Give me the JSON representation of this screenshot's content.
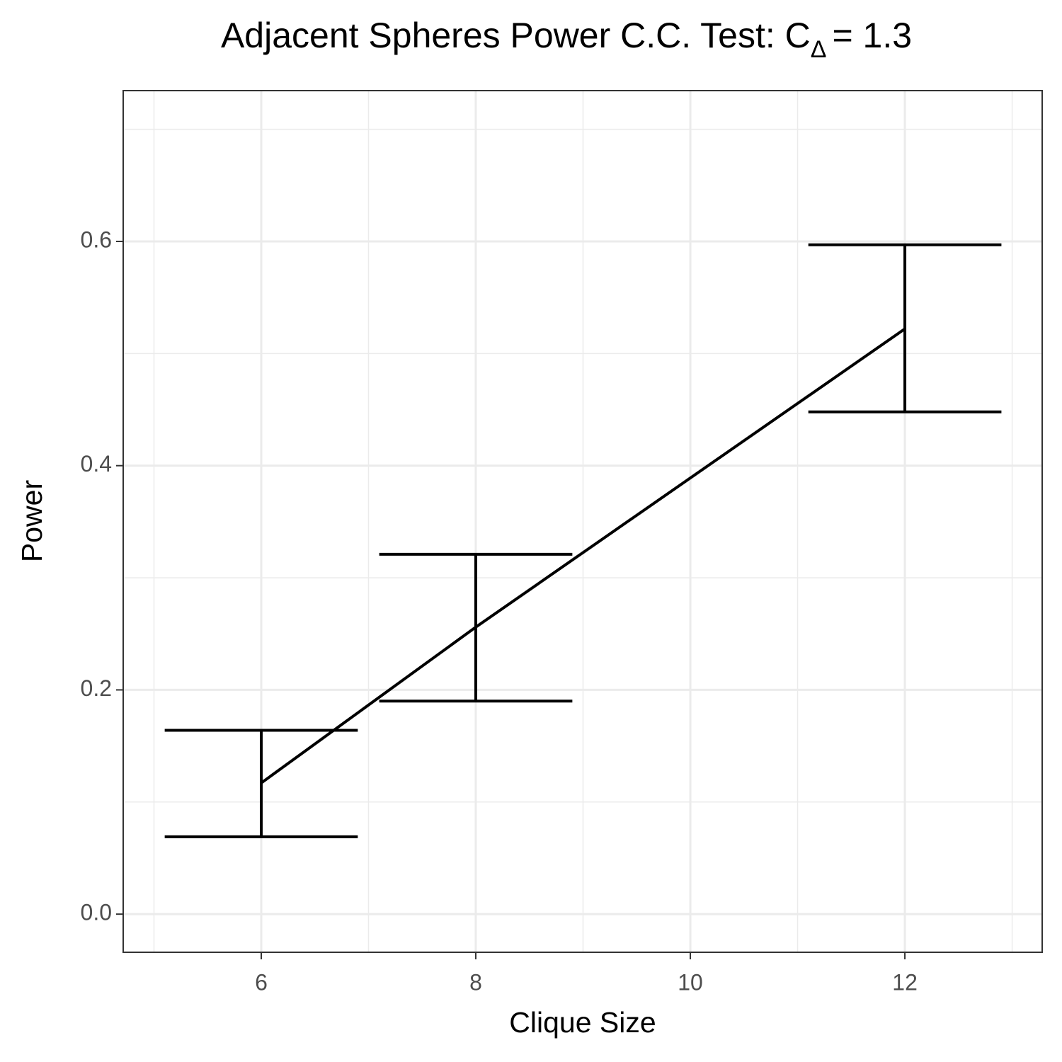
{
  "chart_data": {
    "type": "line-errorbar",
    "title": [
      "Adjacent Spheres Power C.C. Test: C",
      "Δ",
      "= 1.3"
    ],
    "x_label": "Clique Size",
    "y_label": "Power",
    "x": [
      6,
      8,
      12
    ],
    "values": [
      0.117,
      0.256,
      0.522
    ],
    "lower": [
      0.069,
      0.19,
      0.448
    ],
    "upper": [
      0.164,
      0.321,
      0.597
    ],
    "color": "#000000",
    "xlim": [
      4.713,
      13.28
    ],
    "ylim": [
      -0.034,
      0.7345
    ],
    "xticks": [
      6,
      8,
      10,
      12
    ],
    "yticks": [
      {
        "value": 0,
        "label": "0.0"
      },
      0.2,
      0.4,
      0.6
    ],
    "xminor": [
      5,
      7,
      9,
      11,
      13
    ],
    "yminor": [
      0.1,
      0.3,
      0.5,
      0.7
    ],
    "errorbar_halfwidth": 0.9,
    "grid": true
  }
}
